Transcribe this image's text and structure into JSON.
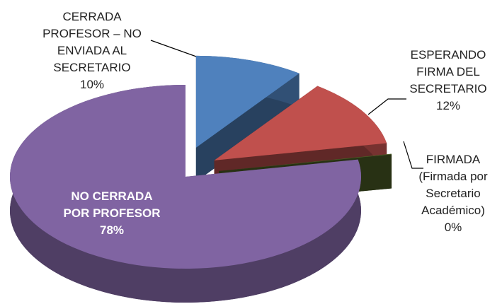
{
  "chart_data": {
    "type": "pie",
    "categories": [
      "CERRADA PROFESOR – NO ENVIADA AL SECRETARIO",
      "ESPERANDO FIRMA DEL SECRETARIO",
      "FIRMADA (Firmada por Secretario Académico)",
      "NO CERRADA POR PROFESOR"
    ],
    "values": [
      10,
      12,
      0,
      78
    ],
    "value_labels": [
      "10%",
      "12%",
      "0%",
      "78%"
    ],
    "colors": [
      "#4f81bd",
      "#c0504d",
      "#4f6228",
      "#8064a2"
    ]
  }
}
